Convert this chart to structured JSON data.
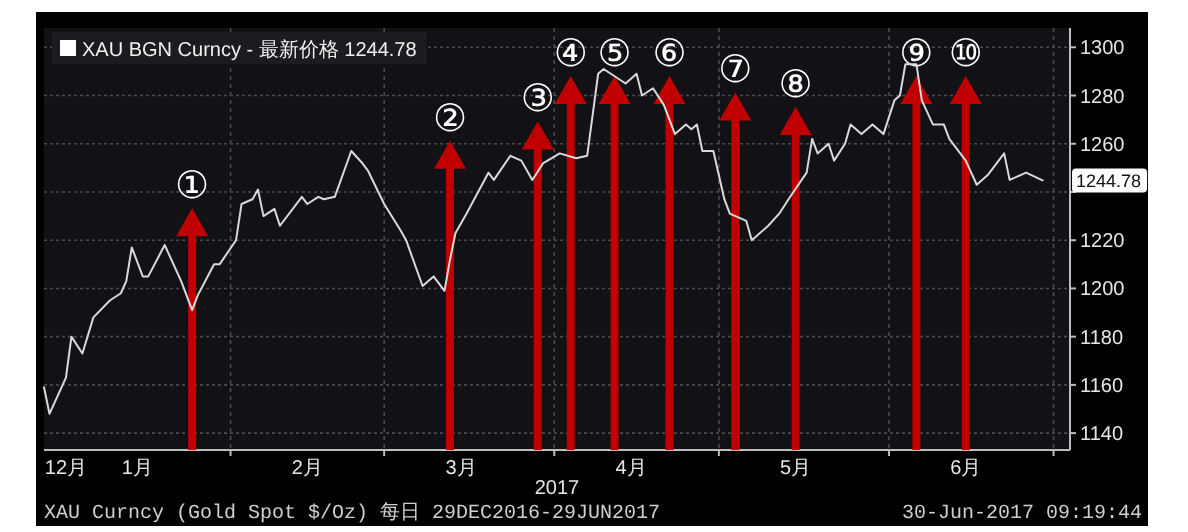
{
  "chart_data": {
    "type": "line",
    "series": [
      {
        "name": "XAU BGN Curncy - 最新价格 1244.78",
        "color": "#d9d9d9",
        "x": [
          "2016-12-29",
          "2016-12-30",
          "2017-01-02",
          "2017-01-03",
          "2017-01-05",
          "2017-01-07",
          "2017-01-10",
          "2017-01-12",
          "2017-01-13",
          "2017-01-14",
          "2017-01-16",
          "2017-01-17",
          "2017-01-20",
          "2017-01-23",
          "2017-01-25",
          "2017-01-26",
          "2017-01-29",
          "2017-01-30",
          "2017-02-02",
          "2017-02-03",
          "2017-02-05",
          "2017-02-06",
          "2017-02-07",
          "2017-02-09",
          "2017-02-10",
          "2017-02-14",
          "2017-02-15",
          "2017-02-17",
          "2017-02-18",
          "2017-02-20",
          "2017-02-23",
          "2017-02-25",
          "2017-02-26",
          "2017-03-01",
          "2017-03-04",
          "2017-03-05",
          "2017-03-08",
          "2017-03-10",
          "2017-03-12",
          "2017-03-13",
          "2017-03-14",
          "2017-03-16",
          "2017-03-20",
          "2017-03-21",
          "2017-03-24",
          "2017-03-26",
          "2017-03-28",
          "2017-03-30",
          "2017-04-02",
          "2017-04-05",
          "2017-04-07",
          "2017-04-08",
          "2017-04-09",
          "2017-04-10",
          "2017-04-12",
          "2017-04-14",
          "2017-04-16",
          "2017-04-17",
          "2017-04-19",
          "2017-04-21",
          "2017-04-23",
          "2017-04-25",
          "2017-04-26",
          "2017-04-27",
          "2017-04-28",
          "2017-04-30",
          "2017-05-02",
          "2017-05-03",
          "2017-05-06",
          "2017-05-07",
          "2017-05-10",
          "2017-05-12",
          "2017-05-14",
          "2017-05-17",
          "2017-05-18",
          "2017-05-19",
          "2017-05-21",
          "2017-05-22",
          "2017-05-24",
          "2017-05-25",
          "2017-05-26",
          "2017-05-27",
          "2017-05-29",
          "2017-05-31",
          "2017-06-02",
          "2017-06-03",
          "2017-06-04",
          "2017-06-06",
          "2017-06-07",
          "2017-06-09",
          "2017-06-11",
          "2017-06-12",
          "2017-06-15",
          "2017-06-17",
          "2017-06-19",
          "2017-06-22",
          "2017-06-23",
          "2017-06-26",
          "2017-06-29"
        ],
        "values": [
          1159,
          1148,
          1163,
          1180,
          1173,
          1188,
          1195,
          1198,
          1203,
          1217,
          1205,
          1205,
          1218,
          1203,
          1191,
          1197,
          1210,
          1210,
          1220,
          1235,
          1237,
          1241,
          1230,
          1233,
          1226,
          1238,
          1235,
          1238,
          1237,
          1238,
          1257,
          1252,
          1249,
          1235,
          1224,
          1220,
          1201,
          1205,
          1199,
          1212,
          1223,
          1231,
          1248,
          1245,
          1255,
          1253,
          1245,
          1252,
          1256,
          1254,
          1255,
          1272,
          1289,
          1291,
          1288,
          1285,
          1289,
          1280,
          1283,
          1276,
          1264,
          1268,
          1266,
          1268,
          1257,
          1257,
          1237,
          1231,
          1228,
          1220,
          1226,
          1231,
          1238,
          1248,
          1262,
          1256,
          1260,
          1253,
          1260,
          1268,
          1266,
          1264,
          1268,
          1264,
          1278,
          1280,
          1293,
          1293,
          1278,
          1268,
          1268,
          1262,
          1253,
          1243,
          1247,
          1256,
          1245,
          1248,
          1244.78
        ]
      }
    ],
    "xlim": [
      "2016-12-29",
      "2017-07-04"
    ],
    "ylim": [
      1133,
      1308
    ],
    "xticks": [
      {
        "value": "2017-01-02",
        "label": "12月"
      },
      {
        "value": "2017-01-15",
        "label": "1月"
      },
      {
        "value": "2017-02-01",
        "label": null
      },
      {
        "value": "2017-02-15",
        "label": "2月"
      },
      {
        "value": "2017-03-01",
        "label": null
      },
      {
        "value": "2017-03-15",
        "label": "3月"
      },
      {
        "value": "2017-04-01",
        "label": null
      },
      {
        "value": "2017-04-15",
        "label": "4月"
      },
      {
        "value": "2017-05-01",
        "label": null
      },
      {
        "value": "2017-05-15",
        "label": "5月"
      },
      {
        "value": "2017-06-01",
        "label": null
      },
      {
        "value": "2017-06-15",
        "label": "6月"
      },
      {
        "value": "2017-07-01",
        "label": null
      }
    ],
    "yticks": [
      1140,
      1160,
      1180,
      1200,
      1220,
      {
        "value": 1240,
        "label": null
      },
      1260,
      1280,
      1300
    ],
    "xlabel": "2017",
    "grid": true,
    "legend": "top left",
    "ref_lines": [
      {
        "axis": "x",
        "value": "2017-01-25",
        "label": "①",
        "color": "#c00000"
      },
      {
        "axis": "x",
        "value": "2017-03-13",
        "label": "②",
        "color": "#c00000"
      },
      {
        "axis": "x",
        "value": "2017-03-29",
        "label": "③",
        "color": "#c00000"
      },
      {
        "axis": "x",
        "value": "2017-04-04",
        "label": "④",
        "color": "#c00000"
      },
      {
        "axis": "x",
        "value": "2017-04-12",
        "label": "⑤",
        "color": "#c00000"
      },
      {
        "axis": "x",
        "value": "2017-04-22",
        "label": "⑥",
        "color": "#c00000"
      },
      {
        "axis": "x",
        "value": "2017-05-04",
        "label": "⑦",
        "color": "#c00000"
      },
      {
        "axis": "x",
        "value": "2017-05-15",
        "label": "⑧",
        "color": "#c00000"
      },
      {
        "axis": "x",
        "value": "2017-06-06",
        "label": "⑨",
        "color": "#c00000"
      },
      {
        "axis": "x",
        "value": "2017-06-15",
        "label": "⑩",
        "color": "#c00000"
      }
    ],
    "annotations": [
      {
        "text": "1244.78",
        "x": "2017-06-29",
        "y": 1244.78
      },
      "XAU Curncy (Gold Spot  $/Oz) 每日 29DEC2016-29JUN2017",
      "30-Jun-2017 09:19:44"
    ]
  }
}
